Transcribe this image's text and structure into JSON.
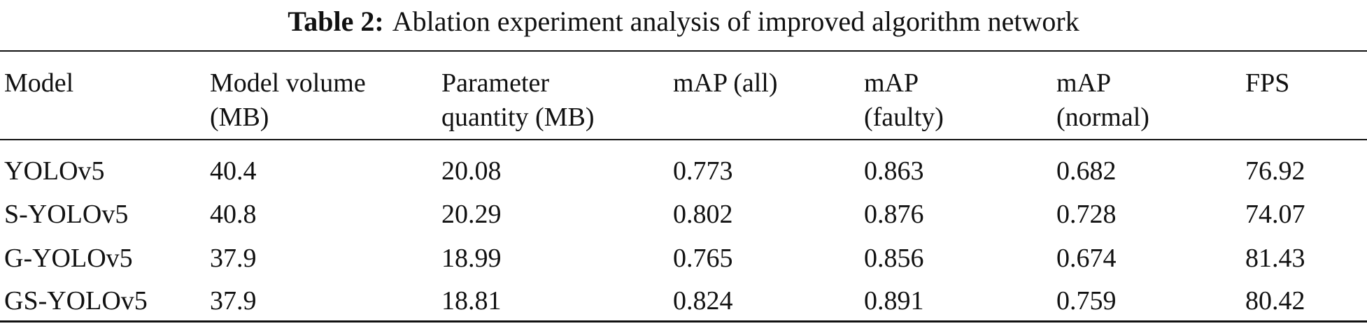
{
  "table": {
    "caption_label": "Table 2:",
    "caption": "Ablation experiment analysis of improved algorithm network",
    "header": [
      [
        "Model"
      ],
      [
        "Model volume",
        "(MB)"
      ],
      [
        "Parameter",
        "quantity (MB)"
      ],
      [
        "mAP (all)"
      ],
      [
        "mAP",
        "(faulty)"
      ],
      [
        "mAP",
        "(normal)"
      ],
      [
        "FPS"
      ]
    ],
    "rows": [
      [
        "YOLOv5",
        "40.4",
        "20.08",
        "0.773",
        "0.863",
        "0.682",
        "76.92"
      ],
      [
        "S-YOLOv5",
        "40.8",
        "20.29",
        "0.802",
        "0.876",
        "0.728",
        "74.07"
      ],
      [
        "G-YOLOv5",
        "37.9",
        "18.99",
        "0.765",
        "0.856",
        "0.674",
        "81.43"
      ],
      [
        "GS-YOLOv5",
        "37.9",
        "18.81",
        "0.824",
        "0.891",
        "0.759",
        "80.42"
      ]
    ]
  }
}
